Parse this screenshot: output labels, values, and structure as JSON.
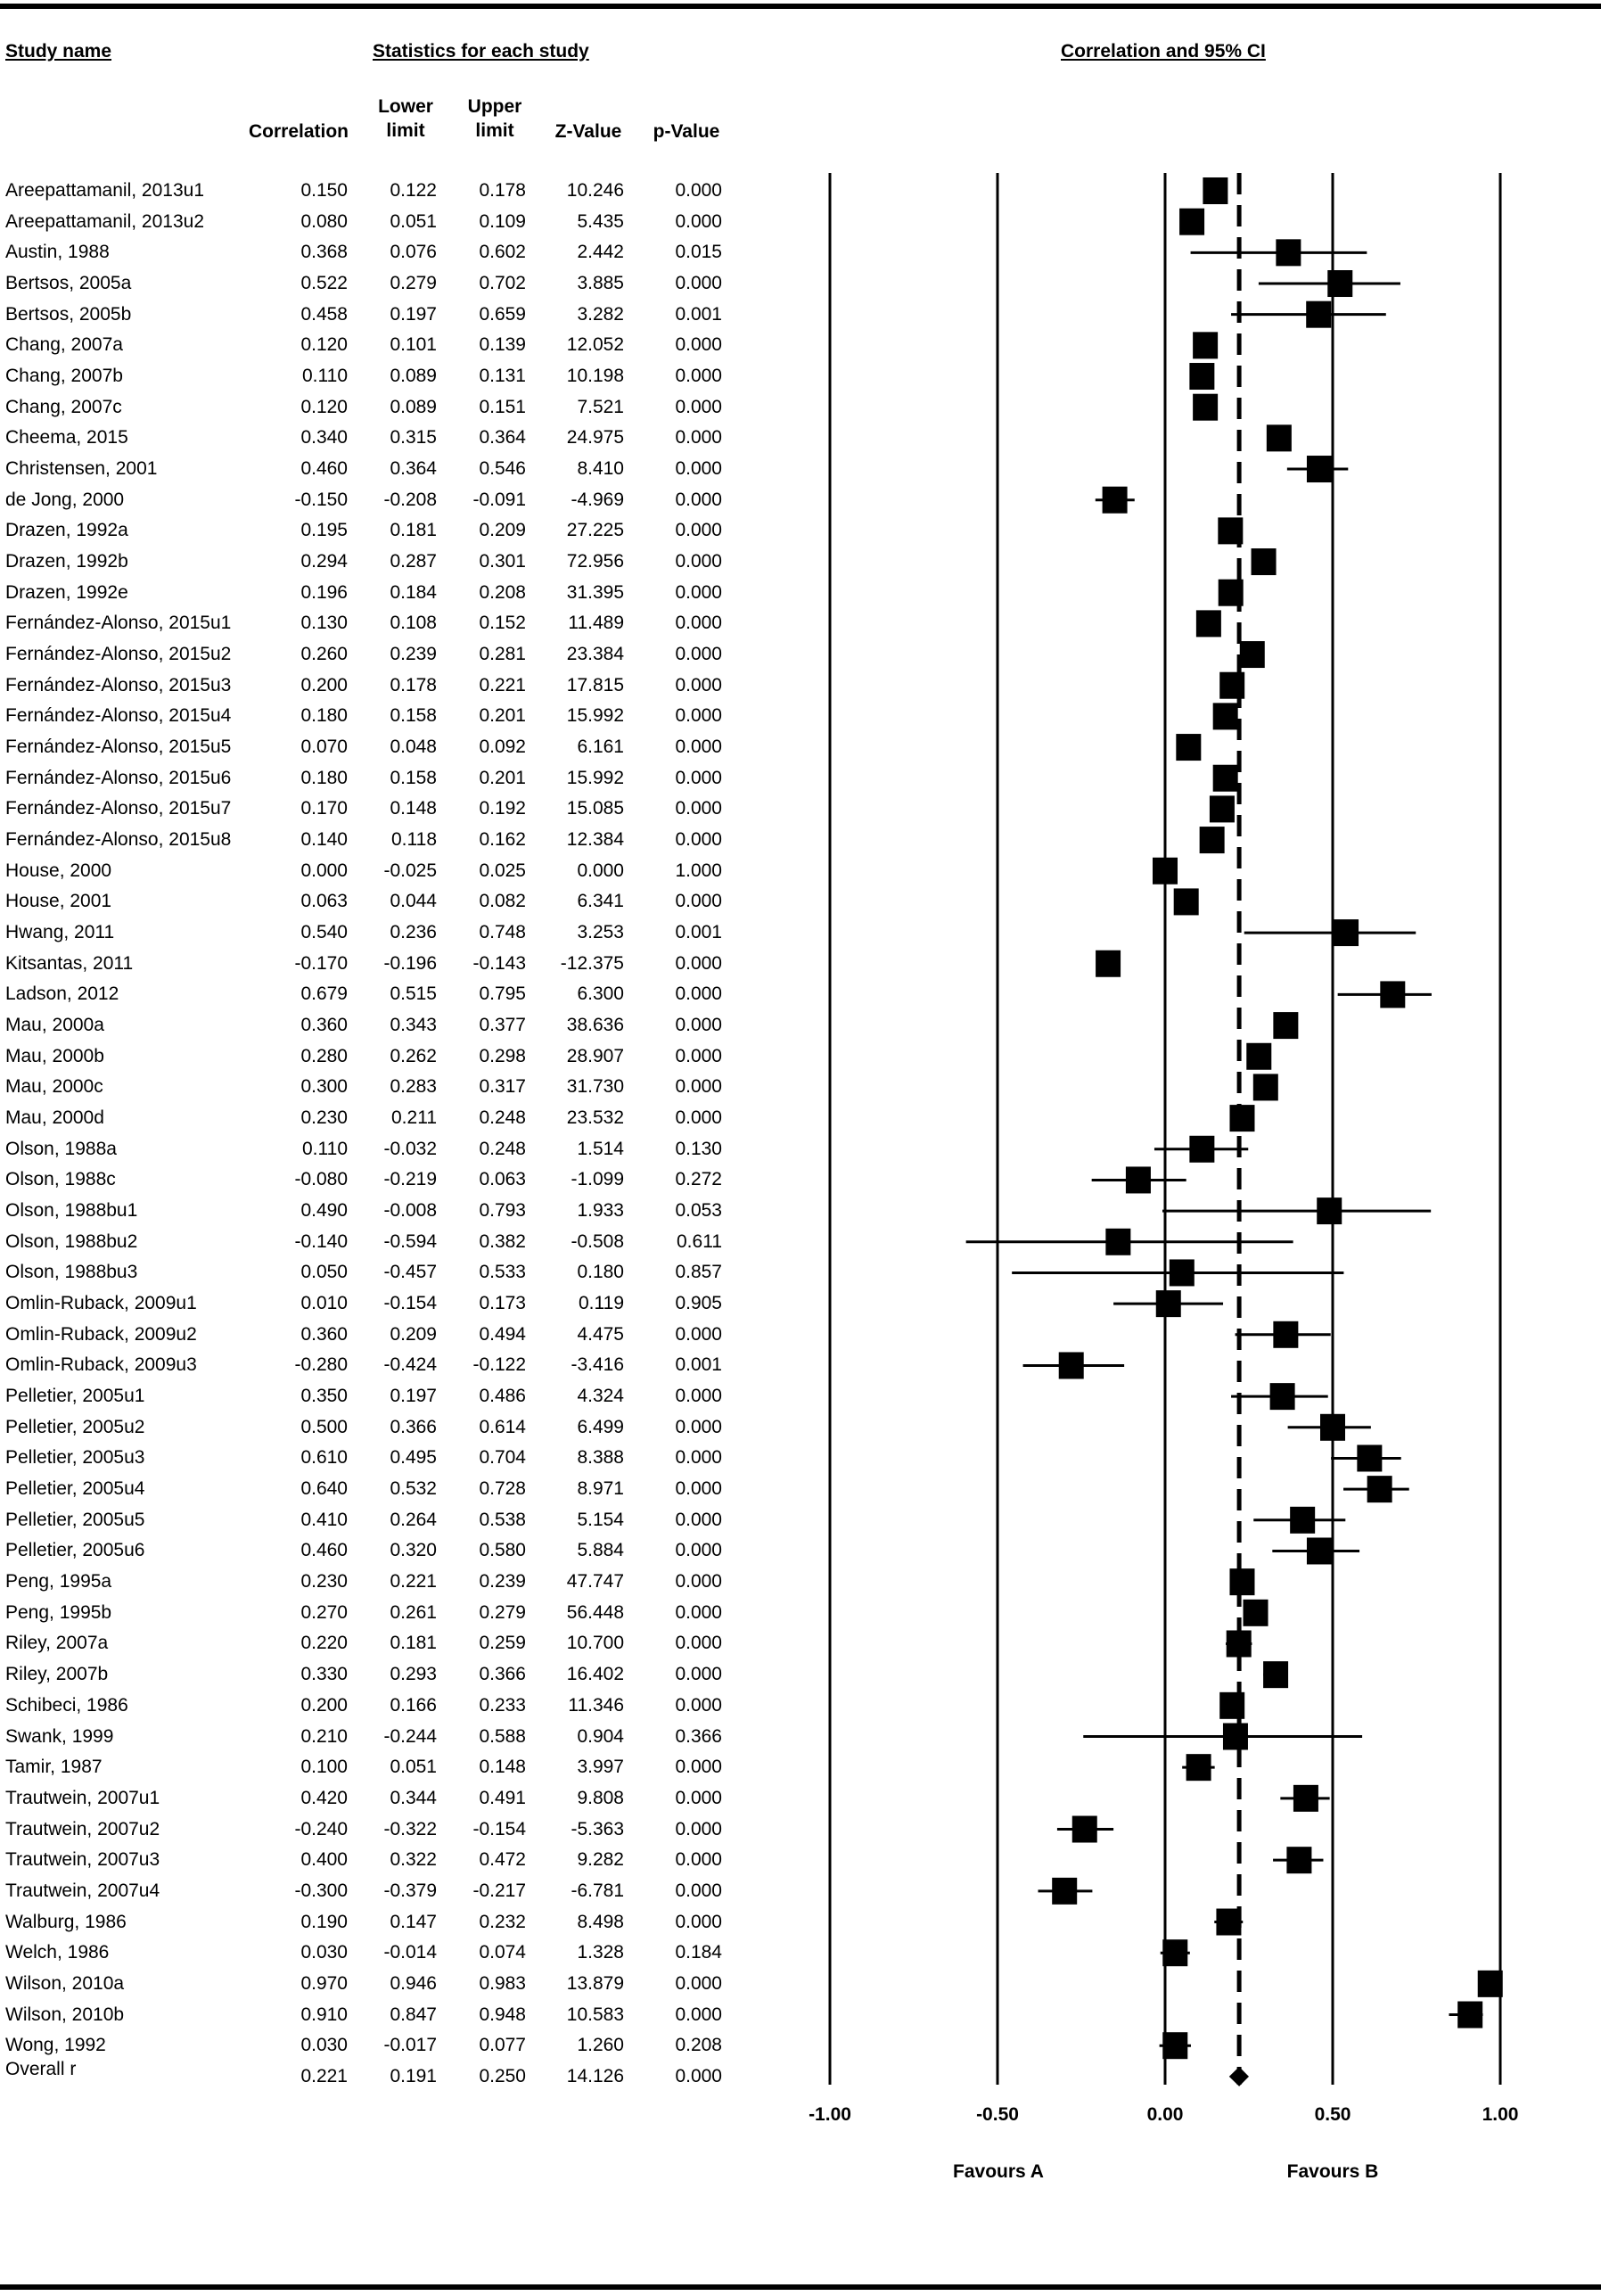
{
  "headers": {
    "study_name": "Study name",
    "stats": "Statistics for each study",
    "plot": "Correlation and 95% CI",
    "col_corr": "Correlation",
    "col_lower_1": "Lower",
    "col_lower_2": "limit",
    "col_upper_1": "Upper",
    "col_upper_2": "limit",
    "col_z": "Z-Value",
    "col_p": "p-Value"
  },
  "footer": {
    "favours_a": "Favours A",
    "favours_b": "Favours B"
  },
  "chart_data": {
    "type": "forest",
    "xlim": [
      -1.0,
      1.0
    ],
    "ticks": [
      -1.0,
      -0.5,
      0.0,
      0.5,
      1.0
    ],
    "tick_labels": [
      "-1.00",
      "-0.50",
      "0.00",
      "0.50",
      "1.00"
    ],
    "overall_effect": 0.221,
    "studies": [
      {
        "name": "Areepattamanil, 2013u1",
        "corr": "0.150",
        "lower": "0.122",
        "upper": "0.178",
        "z": "10.246",
        "p": "0.000"
      },
      {
        "name": "Areepattamanil, 2013u2",
        "corr": "0.080",
        "lower": "0.051",
        "upper": "0.109",
        "z": "5.435",
        "p": "0.000"
      },
      {
        "name": "Austin, 1988",
        "corr": "0.368",
        "lower": "0.076",
        "upper": "0.602",
        "z": "2.442",
        "p": "0.015"
      },
      {
        "name": "Bertsos, 2005a",
        "corr": "0.522",
        "lower": "0.279",
        "upper": "0.702",
        "z": "3.885",
        "p": "0.000"
      },
      {
        "name": "Bertsos, 2005b",
        "corr": "0.458",
        "lower": "0.197",
        "upper": "0.659",
        "z": "3.282",
        "p": "0.001"
      },
      {
        "name": "Chang, 2007a",
        "corr": "0.120",
        "lower": "0.101",
        "upper": "0.139",
        "z": "12.052",
        "p": "0.000"
      },
      {
        "name": "Chang, 2007b",
        "corr": "0.110",
        "lower": "0.089",
        "upper": "0.131",
        "z": "10.198",
        "p": "0.000"
      },
      {
        "name": "Chang, 2007c",
        "corr": "0.120",
        "lower": "0.089",
        "upper": "0.151",
        "z": "7.521",
        "p": "0.000"
      },
      {
        "name": "Cheema, 2015",
        "corr": "0.340",
        "lower": "0.315",
        "upper": "0.364",
        "z": "24.975",
        "p": "0.000"
      },
      {
        "name": "Christensen, 2001",
        "corr": "0.460",
        "lower": "0.364",
        "upper": "0.546",
        "z": "8.410",
        "p": "0.000"
      },
      {
        "name": "de Jong, 2000",
        "corr": "-0.150",
        "lower": "-0.208",
        "upper": "-0.091",
        "z": "-4.969",
        "p": "0.000"
      },
      {
        "name": "Drazen, 1992a",
        "corr": "0.195",
        "lower": "0.181",
        "upper": "0.209",
        "z": "27.225",
        "p": "0.000"
      },
      {
        "name": "Drazen, 1992b",
        "corr": "0.294",
        "lower": "0.287",
        "upper": "0.301",
        "z": "72.956",
        "p": "0.000"
      },
      {
        "name": "Drazen, 1992e",
        "corr": "0.196",
        "lower": "0.184",
        "upper": "0.208",
        "z": "31.395",
        "p": "0.000"
      },
      {
        "name": "Fernández-Alonso, 2015u1",
        "corr": "0.130",
        "lower": "0.108",
        "upper": "0.152",
        "z": "11.489",
        "p": "0.000"
      },
      {
        "name": "Fernández-Alonso, 2015u2",
        "corr": "0.260",
        "lower": "0.239",
        "upper": "0.281",
        "z": "23.384",
        "p": "0.000"
      },
      {
        "name": "Fernández-Alonso, 2015u3",
        "corr": "0.200",
        "lower": "0.178",
        "upper": "0.221",
        "z": "17.815",
        "p": "0.000"
      },
      {
        "name": "Fernández-Alonso, 2015u4",
        "corr": "0.180",
        "lower": "0.158",
        "upper": "0.201",
        "z": "15.992",
        "p": "0.000"
      },
      {
        "name": "Fernández-Alonso, 2015u5",
        "corr": "0.070",
        "lower": "0.048",
        "upper": "0.092",
        "z": "6.161",
        "p": "0.000"
      },
      {
        "name": "Fernández-Alonso, 2015u6",
        "corr": "0.180",
        "lower": "0.158",
        "upper": "0.201",
        "z": "15.992",
        "p": "0.000"
      },
      {
        "name": "Fernández-Alonso, 2015u7",
        "corr": "0.170",
        "lower": "0.148",
        "upper": "0.192",
        "z": "15.085",
        "p": "0.000"
      },
      {
        "name": "Fernández-Alonso, 2015u8",
        "corr": "0.140",
        "lower": "0.118",
        "upper": "0.162",
        "z": "12.384",
        "p": "0.000"
      },
      {
        "name": "House, 2000",
        "corr": "0.000",
        "lower": "-0.025",
        "upper": "0.025",
        "z": "0.000",
        "p": "1.000"
      },
      {
        "name": "House, 2001",
        "corr": "0.063",
        "lower": "0.044",
        "upper": "0.082",
        "z": "6.341",
        "p": "0.000"
      },
      {
        "name": "Hwang, 2011",
        "corr": "0.540",
        "lower": "0.236",
        "upper": "0.748",
        "z": "3.253",
        "p": "0.001"
      },
      {
        "name": "Kitsantas, 2011",
        "corr": "-0.170",
        "lower": "-0.196",
        "upper": "-0.143",
        "z": "-12.375",
        "p": "0.000"
      },
      {
        "name": "Ladson, 2012",
        "corr": "0.679",
        "lower": "0.515",
        "upper": "0.795",
        "z": "6.300",
        "p": "0.000"
      },
      {
        "name": "Mau, 2000a",
        "corr": "0.360",
        "lower": "0.343",
        "upper": "0.377",
        "z": "38.636",
        "p": "0.000"
      },
      {
        "name": "Mau, 2000b",
        "corr": "0.280",
        "lower": "0.262",
        "upper": "0.298",
        "z": "28.907",
        "p": "0.000"
      },
      {
        "name": "Mau, 2000c",
        "corr": "0.300",
        "lower": "0.283",
        "upper": "0.317",
        "z": "31.730",
        "p": "0.000"
      },
      {
        "name": "Mau, 2000d",
        "corr": "0.230",
        "lower": "0.211",
        "upper": "0.248",
        "z": "23.532",
        "p": "0.000"
      },
      {
        "name": "Olson, 1988a",
        "corr": "0.110",
        "lower": "-0.032",
        "upper": "0.248",
        "z": "1.514",
        "p": "0.130"
      },
      {
        "name": "Olson, 1988c",
        "corr": "-0.080",
        "lower": "-0.219",
        "upper": "0.063",
        "z": "-1.099",
        "p": "0.272"
      },
      {
        "name": "Olson, 1988bu1",
        "corr": "0.490",
        "lower": "-0.008",
        "upper": "0.793",
        "z": "1.933",
        "p": "0.053"
      },
      {
        "name": "Olson, 1988bu2",
        "corr": "-0.140",
        "lower": "-0.594",
        "upper": "0.382",
        "z": "-0.508",
        "p": "0.611"
      },
      {
        "name": "Olson, 1988bu3",
        "corr": "0.050",
        "lower": "-0.457",
        "upper": "0.533",
        "z": "0.180",
        "p": "0.857"
      },
      {
        "name": "Omlin-Ruback, 2009u1",
        "corr": "0.010",
        "lower": "-0.154",
        "upper": "0.173",
        "z": "0.119",
        "p": "0.905"
      },
      {
        "name": "Omlin-Ruback, 2009u2",
        "corr": "0.360",
        "lower": "0.209",
        "upper": "0.494",
        "z": "4.475",
        "p": "0.000"
      },
      {
        "name": "Omlin-Ruback, 2009u3",
        "corr": "-0.280",
        "lower": "-0.424",
        "upper": "-0.122",
        "z": "-3.416",
        "p": "0.001"
      },
      {
        "name": "Pelletier, 2005u1",
        "corr": "0.350",
        "lower": "0.197",
        "upper": "0.486",
        "z": "4.324",
        "p": "0.000"
      },
      {
        "name": "Pelletier, 2005u2",
        "corr": "0.500",
        "lower": "0.366",
        "upper": "0.614",
        "z": "6.499",
        "p": "0.000"
      },
      {
        "name": "Pelletier, 2005u3",
        "corr": "0.610",
        "lower": "0.495",
        "upper": "0.704",
        "z": "8.388",
        "p": "0.000"
      },
      {
        "name": "Pelletier, 2005u4",
        "corr": "0.640",
        "lower": "0.532",
        "upper": "0.728",
        "z": "8.971",
        "p": "0.000"
      },
      {
        "name": "Pelletier, 2005u5",
        "corr": "0.410",
        "lower": "0.264",
        "upper": "0.538",
        "z": "5.154",
        "p": "0.000"
      },
      {
        "name": "Pelletier, 2005u6",
        "corr": "0.460",
        "lower": "0.320",
        "upper": "0.580",
        "z": "5.884",
        "p": "0.000"
      },
      {
        "name": "Peng, 1995a",
        "corr": "0.230",
        "lower": "0.221",
        "upper": "0.239",
        "z": "47.747",
        "p": "0.000"
      },
      {
        "name": "Peng, 1995b",
        "corr": "0.270",
        "lower": "0.261",
        "upper": "0.279",
        "z": "56.448",
        "p": "0.000"
      },
      {
        "name": "Riley, 2007a",
        "corr": "0.220",
        "lower": "0.181",
        "upper": "0.259",
        "z": "10.700",
        "p": "0.000"
      },
      {
        "name": "Riley, 2007b",
        "corr": "0.330",
        "lower": "0.293",
        "upper": "0.366",
        "z": "16.402",
        "p": "0.000"
      },
      {
        "name": "Schibeci, 1986",
        "corr": "0.200",
        "lower": "0.166",
        "upper": "0.233",
        "z": "11.346",
        "p": "0.000"
      },
      {
        "name": "Swank, 1999",
        "corr": "0.210",
        "lower": "-0.244",
        "upper": "0.588",
        "z": "0.904",
        "p": "0.366"
      },
      {
        "name": "Tamir, 1987",
        "corr": "0.100",
        "lower": "0.051",
        "upper": "0.148",
        "z": "3.997",
        "p": "0.000"
      },
      {
        "name": "Trautwein, 2007u1",
        "corr": "0.420",
        "lower": "0.344",
        "upper": "0.491",
        "z": "9.808",
        "p": "0.000"
      },
      {
        "name": "Trautwein, 2007u2",
        "corr": "-0.240",
        "lower": "-0.322",
        "upper": "-0.154",
        "z": "-5.363",
        "p": "0.000"
      },
      {
        "name": "Trautwein, 2007u3",
        "corr": "0.400",
        "lower": "0.322",
        "upper": "0.472",
        "z": "9.282",
        "p": "0.000"
      },
      {
        "name": "Trautwein, 2007u4",
        "corr": "-0.300",
        "lower": "-0.379",
        "upper": "-0.217",
        "z": "-6.781",
        "p": "0.000"
      },
      {
        "name": "Walburg, 1986",
        "corr": "0.190",
        "lower": "0.147",
        "upper": "0.232",
        "z": "8.498",
        "p": "0.000"
      },
      {
        "name": "Welch, 1986",
        "corr": "0.030",
        "lower": "-0.014",
        "upper": "0.074",
        "z": "1.328",
        "p": "0.184"
      },
      {
        "name": "Wilson, 2010a",
        "corr": "0.970",
        "lower": "0.946",
        "upper": "0.983",
        "z": "13.879",
        "p": "0.000"
      },
      {
        "name": "Wilson, 2010b",
        "corr": "0.910",
        "lower": "0.847",
        "upper": "0.948",
        "z": "10.583",
        "p": "0.000"
      },
      {
        "name": "Wong, 1992",
        "corr": "0.030",
        "lower": "-0.017",
        "upper": "0.077",
        "z": "1.260",
        "p": "0.208"
      }
    ],
    "overall": {
      "name": "Overall r",
      "corr": "0.221",
      "lower": "0.191",
      "upper": "0.250",
      "z": "14.126",
      "p": "0.000"
    }
  }
}
